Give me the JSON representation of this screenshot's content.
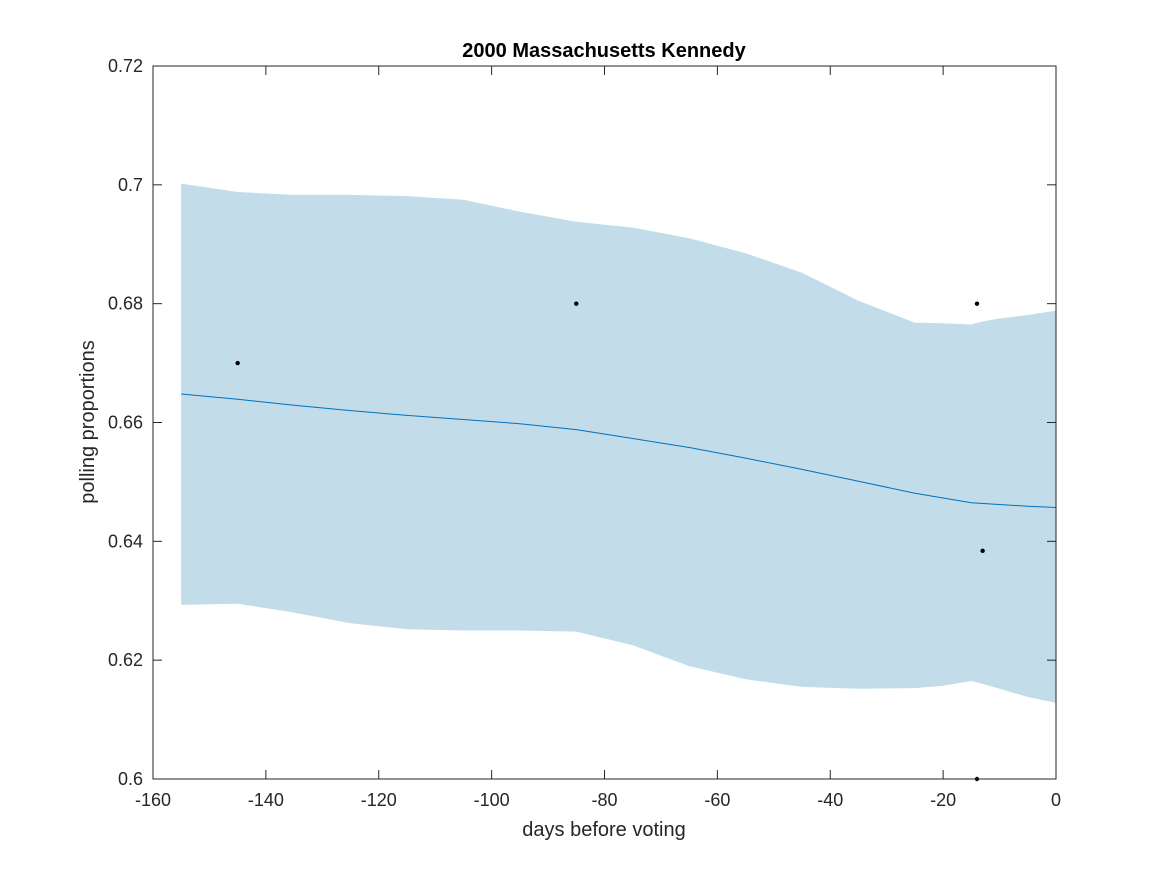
{
  "chart_data": {
    "type": "line",
    "title": "2000 Massachusetts Kennedy",
    "xlabel": "days before voting",
    "ylabel": "polling proportions",
    "xlim": [
      -160,
      0
    ],
    "ylim": [
      0.6,
      0.72
    ],
    "xticks": [
      -160,
      -140,
      -120,
      -100,
      -80,
      -60,
      -40,
      -20,
      0
    ],
    "xtick_labels": [
      "-160",
      "-140",
      "-120",
      "-100",
      "-80",
      "-60",
      "-40",
      "-20",
      "0"
    ],
    "yticks": [
      0.6,
      0.62,
      0.64,
      0.66,
      0.68,
      0.7,
      0.72
    ],
    "ytick_labels": [
      "0.6",
      "0.62",
      "0.64",
      "0.66",
      "0.68",
      "0.7",
      "0.72"
    ],
    "grid": false,
    "colors": {
      "band": "#c2dcea",
      "line": "#0072bd",
      "points": "#000000",
      "axes": "#262626"
    },
    "band": {
      "x": [
        -155,
        -145,
        -135,
        -125,
        -115,
        -105,
        -95,
        -85,
        -75,
        -65,
        -55,
        -45,
        -35,
        -25,
        -20,
        -15,
        -13,
        -10,
        -5,
        0
      ],
      "upper": [
        0.7002,
        0.6988,
        0.6983,
        0.6983,
        0.6981,
        0.6975,
        0.6955,
        0.6938,
        0.6928,
        0.691,
        0.6885,
        0.6852,
        0.6805,
        0.6768,
        0.6767,
        0.6765,
        0.677,
        0.6775,
        0.6781,
        0.6788
      ],
      "lower": [
        0.6293,
        0.6295,
        0.628,
        0.6262,
        0.6252,
        0.625,
        0.625,
        0.6248,
        0.6225,
        0.619,
        0.6168,
        0.6155,
        0.6152,
        0.6153,
        0.6157,
        0.6165,
        0.616,
        0.6152,
        0.6138,
        0.6128
      ]
    },
    "series": [
      {
        "x": [
          -155,
          -145,
          -135,
          -125,
          -115,
          -105,
          -95,
          -85,
          -75,
          -65,
          -55,
          -45,
          -35,
          -25,
          -15,
          -5,
          0
        ],
        "values": [
          0.6648,
          0.6639,
          0.6629,
          0.662,
          0.6612,
          0.6605,
          0.6598,
          0.6588,
          0.6573,
          0.6558,
          0.654,
          0.6521,
          0.6501,
          0.6481,
          0.6465,
          0.6459,
          0.6457
        ]
      }
    ],
    "points": [
      {
        "x": -145,
        "y": 0.67
      },
      {
        "x": -85,
        "y": 0.68
      },
      {
        "x": -14,
        "y": 0.68
      },
      {
        "x": -13,
        "y": 0.6384
      },
      {
        "x": -14,
        "y": 0.6
      }
    ]
  }
}
